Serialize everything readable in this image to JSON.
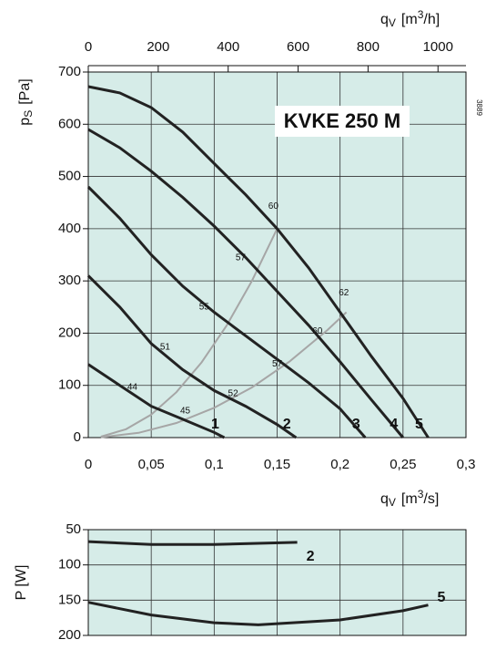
{
  "chart_data": [
    {
      "type": "line",
      "title": "KVKE 250 M",
      "side_note": "3889",
      "ylabel": [
        "p",
        "S",
        "[Pa]"
      ],
      "xlabel": [
        "q",
        "V",
        "[m",
        "3",
        "/s]"
      ],
      "x2label": [
        "q",
        "V",
        "[m",
        "3",
        "/h]"
      ],
      "xlim": [
        0,
        0.3
      ],
      "xticks": [
        0,
        {
          "value": 0.05,
          "label": "0,05"
        },
        {
          "value": 0.1,
          "label": "0,1"
        },
        {
          "value": 0.15,
          "label": "0,15"
        },
        {
          "value": 0.2,
          "label": "0,2"
        },
        {
          "value": 0.25,
          "label": "0,25"
        },
        {
          "value": 0.3,
          "label": "0,3"
        }
      ],
      "x2lim": [
        0,
        1080
      ],
      "x2ticks": [
        0,
        200,
        400,
        600,
        800,
        1000
      ],
      "ylim": [
        0,
        700
      ],
      "yticks": [
        0,
        100,
        200,
        300,
        400,
        500,
        600,
        700
      ],
      "grid": true,
      "series": [
        {
          "name": "1",
          "color": "#222222",
          "x": [
            0,
            0.025,
            0.05,
            0.075,
            0.1,
            0.108
          ],
          "values": [
            140,
            100,
            60,
            35,
            10,
            0
          ]
        },
        {
          "name": "2",
          "color": "#222222",
          "x": [
            0,
            0.025,
            0.05,
            0.075,
            0.1,
            0.125,
            0.15,
            0.165
          ],
          "values": [
            310,
            250,
            180,
            130,
            90,
            60,
            25,
            0
          ]
        },
        {
          "name": "3",
          "color": "#222222",
          "x": [
            0,
            0.025,
            0.05,
            0.075,
            0.1,
            0.125,
            0.15,
            0.175,
            0.2,
            0.22
          ],
          "values": [
            480,
            420,
            350,
            290,
            240,
            195,
            150,
            105,
            55,
            0
          ]
        },
        {
          "name": "4",
          "color": "#222222",
          "x": [
            0,
            0.025,
            0.05,
            0.075,
            0.1,
            0.125,
            0.15,
            0.175,
            0.2,
            0.225,
            0.25
          ],
          "values": [
            590,
            555,
            510,
            460,
            405,
            345,
            280,
            215,
            145,
            72,
            0
          ]
        },
        {
          "name": "5",
          "color": "#222222",
          "x": [
            0,
            0.025,
            0.05,
            0.075,
            0.1,
            0.125,
            0.15,
            0.175,
            0.2,
            0.225,
            0.25,
            0.27
          ],
          "values": [
            672,
            660,
            632,
            585,
            525,
            465,
            400,
            325,
            240,
            155,
            75,
            0
          ]
        }
      ],
      "system_curves": [
        {
          "color": "#a6a6a6",
          "x": [
            0.01,
            0.03,
            0.05,
            0.07,
            0.09,
            0.11,
            0.13,
            0.15
          ],
          "values": [
            1.8,
            16,
            44,
            87,
            144,
            215,
            300,
            400
          ]
        },
        {
          "color": "#a6a6a6",
          "x": [
            0.01,
            0.04,
            0.07,
            0.1,
            0.13,
            0.16,
            0.19,
            0.205
          ],
          "values": [
            0.6,
            9,
            28,
            57,
            96,
            146,
            206,
            240
          ]
        }
      ],
      "annotations": [
        {
          "text": "60",
          "x": 0.147,
          "y": 443
        },
        {
          "text": "57",
          "x": 0.121,
          "y": 344
        },
        {
          "text": "55",
          "x": 0.092,
          "y": 250
        },
        {
          "text": "51",
          "x": 0.061,
          "y": 173
        },
        {
          "text": "44",
          "x": 0.035,
          "y": 96
        },
        {
          "text": "45",
          "x": 0.077,
          "y": 51
        },
        {
          "text": "52",
          "x": 0.115,
          "y": 84
        },
        {
          "text": "57",
          "x": 0.15,
          "y": 141
        },
        {
          "text": "60",
          "x": 0.182,
          "y": 204
        },
        {
          "text": "62",
          "x": 0.203,
          "y": 277
        }
      ]
    },
    {
      "type": "line",
      "ylabel": [
        "P [W]"
      ],
      "xlim": [
        0,
        0.3
      ],
      "xticks": [
        0,
        0.05,
        0.1,
        0.15,
        0.2,
        0.25,
        0.3
      ],
      "ylim": [
        200,
        50
      ],
      "yticks": [
        50,
        100,
        150,
        200
      ],
      "grid": true,
      "series": [
        {
          "name": "2",
          "color": "#222222",
          "x": [
            0,
            0.05,
            0.1,
            0.166
          ],
          "values": [
            67,
            71,
            71,
            68
          ]
        },
        {
          "name": "5",
          "color": "#222222",
          "x": [
            0,
            0.05,
            0.1,
            0.135,
            0.2,
            0.25,
            0.27
          ],
          "values": [
            153,
            171,
            182,
            185,
            178,
            165,
            157
          ]
        }
      ]
    }
  ]
}
